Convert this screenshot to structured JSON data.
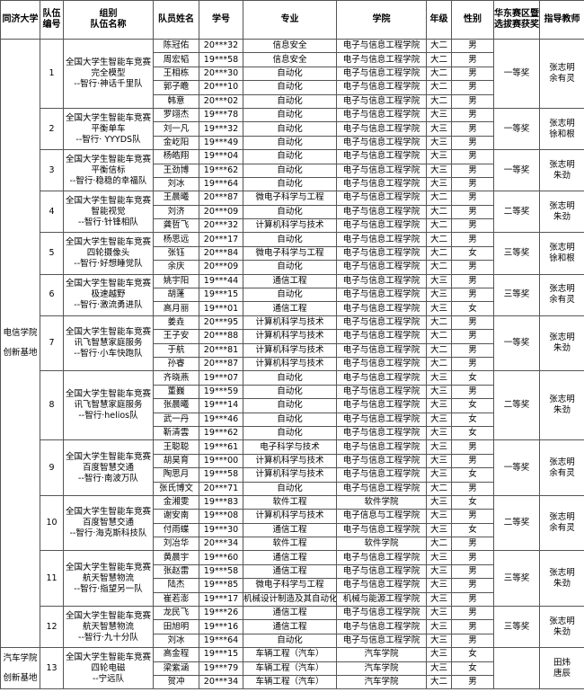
{
  "headers": [
    "同济大学",
    "队伍编号",
    "组别\n队伍名称",
    "队员姓名",
    "学号",
    "专业",
    "学院",
    "年级",
    "性别",
    "华东赛区暨选拔赛获奖",
    "指导教师"
  ],
  "bases": [
    {
      "name": "电信学院\n创新基地",
      "team_count": 12
    },
    {
      "name": "汽车学院\n创新基地",
      "team_count": 1
    }
  ],
  "teams": [
    {
      "no": "1",
      "title": "全国大学生智能车竞赛\n完全模型\n--智行·神话千里队",
      "award": "一等奖",
      "advisors": "张志明\n余有灵",
      "members": [
        [
          "陈冠佑",
          "20***32",
          "信息安全",
          "电子与信息工程学院",
          "大二",
          "男"
        ],
        [
          "周宏韬",
          "19***58",
          "信息安全",
          "电子与信息工程学院",
          "大二",
          "男"
        ],
        [
          "王相栋",
          "20***30",
          "自动化",
          "电子与信息工程学院",
          "大二",
          "男"
        ],
        [
          "郭子瞻",
          "20***10",
          "自动化",
          "电子与信息工程学院",
          "大二",
          "男"
        ],
        [
          "韩意",
          "20***02",
          "自动化",
          "电子与信息工程学院",
          "大二",
          "男"
        ]
      ]
    },
    {
      "no": "2",
      "title": "全国大学生智能车竞赛\n平衡单车\n--智行· YYYDS队",
      "award": "一等奖",
      "advisors": "张志明\n徐和根",
      "members": [
        [
          "罗翊杰",
          "19***78",
          "自动化",
          "电子与信息工程学院",
          "大三",
          "男"
        ],
        [
          "刘一凡",
          "19***32",
          "自动化",
          "电子与信息工程学院",
          "大三",
          "男"
        ],
        [
          "金屹阳",
          "19***49",
          "自动化",
          "电子与信息工程学院",
          "大三",
          "男"
        ]
      ]
    },
    {
      "no": "3",
      "title": "全国大学生智能车竞赛\n平衡信标\n--智行·稳稳的幸福队",
      "award": "一等奖",
      "advisors": "张志明\n朱劲",
      "members": [
        [
          "杨皓翔",
          "19***04",
          "自动化",
          "电子与信息工程学院",
          "大三",
          "男"
        ],
        [
          "王劲博",
          "19***62",
          "自动化",
          "电子与信息工程学院",
          "大三",
          "男"
        ],
        [
          "刘冰",
          "19***64",
          "自动化",
          "电子与信息工程学院",
          "大三",
          "男"
        ]
      ]
    },
    {
      "no": "4",
      "title": "全国大学生智能车竞赛\n智能视觉\n--智行·针锋相队",
      "award": "二等奖",
      "advisors": "张志明\n朱劲",
      "members": [
        [
          "王晨曦",
          "20***87",
          "微电子科学与工程",
          "电子与信息工程学院",
          "大二",
          "男"
        ],
        [
          "刘济",
          "20***09",
          "自动化",
          "电子与信息工程学院",
          "大二",
          "男"
        ],
        [
          "龚哲飞",
          "20***32",
          "计算机科学与技术",
          "电子与信息工程学院",
          "大二",
          "男"
        ]
      ]
    },
    {
      "no": "5",
      "title": "全国大学生智能车竞赛\n四轮摄像头\n--智行·好想睡觉队",
      "award": "三等奖",
      "advisors": "张志明\n徐和根",
      "members": [
        [
          "杨思远",
          "20***17",
          "自动化",
          "电子与信息工程学院",
          "大二",
          "男"
        ],
        [
          "张钰",
          "20***84",
          "微电子科学与工程",
          "电子与信息工程学院",
          "大二",
          "女"
        ],
        [
          "余庆",
          "20***09",
          "自动化",
          "电子与信息工程学院",
          "大二",
          "男"
        ]
      ]
    },
    {
      "no": "6",
      "title": "全国大学生智能车竞赛\n极速越野\n--智行·激流勇进队",
      "award": "三等奖",
      "advisors": "张志明\n余有灵",
      "members": [
        [
          "姚宇阳",
          "19***44",
          "通信工程",
          "电子与信息工程学院",
          "大三",
          "男"
        ],
        [
          "胡蓬",
          "19***15",
          "自动化",
          "电子与信息工程学院",
          "大三",
          "男"
        ],
        [
          "高月丽",
          "19***01",
          "通信工程",
          "电子与信息工程学院",
          "大三",
          "女"
        ]
      ]
    },
    {
      "no": "7",
      "title": "全国大学生智能车竞赛\n讯飞智慧家庭服务\n--智行·小车快跑队",
      "award": "一等奖",
      "advisors": "张志明\n朱劲",
      "members": [
        [
          "姜垚",
          "20***95",
          "计算机科学与技术",
          "电子与信息工程学院",
          "大二",
          "男"
        ],
        [
          "王子安",
          "20***88",
          "计算机科学与技术",
          "电子与信息工程学院",
          "大二",
          "男"
        ],
        [
          "于航",
          "20***81",
          "计算机科学与技术",
          "电子与信息工程学院",
          "大二",
          "男"
        ],
        [
          "孙睿",
          "20***87",
          "计算机科学与技术",
          "电子与信息工程学院",
          "大二",
          "男"
        ]
      ]
    },
    {
      "no": "8",
      "title": "全国大学生智能车竞赛\n讯飞智慧家庭服务\n--智行·helios队",
      "award": "二等奖",
      "advisors": "张志明\n朱劲",
      "members": [
        [
          "齐晓燕",
          "19***07",
          "自动化",
          "电子与信息工程学院",
          "大三",
          "女"
        ],
        [
          "董巍",
          "19***59",
          "自动化",
          "电子与信息工程学院",
          "大三",
          "男"
        ],
        [
          "张晨曦",
          "19***14",
          "自动化",
          "电子与信息工程学院",
          "大三",
          "女"
        ],
        [
          "武一丹",
          "19***46",
          "自动化",
          "电子与信息工程学院",
          "大三",
          "女"
        ],
        [
          "靳清雲",
          "19***62",
          "自动化",
          "电子与信息工程学院",
          "大三",
          "女"
        ]
      ]
    },
    {
      "no": "9",
      "title": "全国大学生智能车竞赛\n百度智慧交通\n--智行·南波万队",
      "award": "一等奖",
      "advisors": "张志明\n余有灵",
      "members": [
        [
          "王聪聪",
          "19***61",
          "电子科学与技术",
          "电子与信息工程学院",
          "大三",
          "男"
        ],
        [
          "胡昊育",
          "19***00",
          "计算机科学与技术",
          "电子与信息工程学院",
          "大三",
          "男"
        ],
        [
          "陶思月",
          "19***58",
          "计算机科学与技术",
          "电子与信息工程学院",
          "大三",
          "女"
        ],
        [
          "张氏博文",
          "20***71",
          "自动化",
          "电子与信息工程学院",
          "大二",
          "男"
        ]
      ]
    },
    {
      "no": "10",
      "title": "全国大学生智能车竞赛\n百度智慧交通\n--智行·海克斯科技队",
      "award": "二等奖",
      "advisors": "张志明\n余有灵",
      "members": [
        [
          "金湘雯",
          "19***83",
          "软件工程",
          "软件学院",
          "大三",
          "女"
        ],
        [
          "谢安南",
          "19***08",
          "计算机科学与技术",
          "电子信息与工程学院",
          "大三",
          "男"
        ],
        [
          "付雨蝶",
          "19***30",
          "通信工程",
          "电子与信息工程学院",
          "大三",
          "女"
        ],
        [
          "刘冶华",
          "20***34",
          "软件工程",
          "软件学院",
          "大二",
          "男"
        ]
      ]
    },
    {
      "no": "11",
      "title": "全国大学生智能车竞赛\n航天智慧物流\n--智行·指望另一队",
      "award": "三等奖",
      "advisors": "张志明\n朱劲",
      "members": [
        [
          "黄晨宇",
          "19***60",
          "通信工程",
          "电子与信息工程学院",
          "大三",
          "男"
        ],
        [
          "张赵雷",
          "19***58",
          "通信工程",
          "电子与信息工程学院",
          "大三",
          "男"
        ],
        [
          "陆杰",
          "19***85",
          "微电子科学与工程",
          "电子与信息工程学院",
          "大三",
          "男"
        ],
        [
          "崔若澎",
          "19***17",
          "机械设计制造及其自动化",
          "机械与能源工程学院",
          "大三",
          "男"
        ]
      ]
    },
    {
      "no": "12",
      "title": "全国大学生智能车竞赛\n航天智慧物流\n--智行·九十分队",
      "award": "三等奖",
      "advisors": "张志明\n朱劲",
      "members": [
        [
          "龙民飞",
          "19***26",
          "通信工程",
          "电子与信息工程学院",
          "大三",
          "男"
        ],
        [
          "田旭明",
          "19***16",
          "通信工程",
          "电子与信息工程学院",
          "大三",
          "男"
        ],
        [
          "刘冰",
          "19***64",
          "自动化",
          "电子与信息工程学院",
          "大三",
          "男"
        ]
      ]
    },
    {
      "no": "13",
      "title": "全国大学生智能车竞赛\n四轮电磁\n--宁远队",
      "award": "",
      "advisors": "田炜\n唐辰",
      "members": [
        [
          "高金程",
          "19***15",
          "车辆工程（汽车）",
          "汽车学院",
          "大三",
          "女"
        ],
        [
          "梁紫涵",
          "19***79",
          "车辆工程（汽车）",
          "汽车学院",
          "大三",
          "女"
        ],
        [
          "贺冲",
          "20***34",
          "车辆工程（汽车）",
          "汽车学院",
          "大二",
          "男"
        ]
      ]
    }
  ]
}
